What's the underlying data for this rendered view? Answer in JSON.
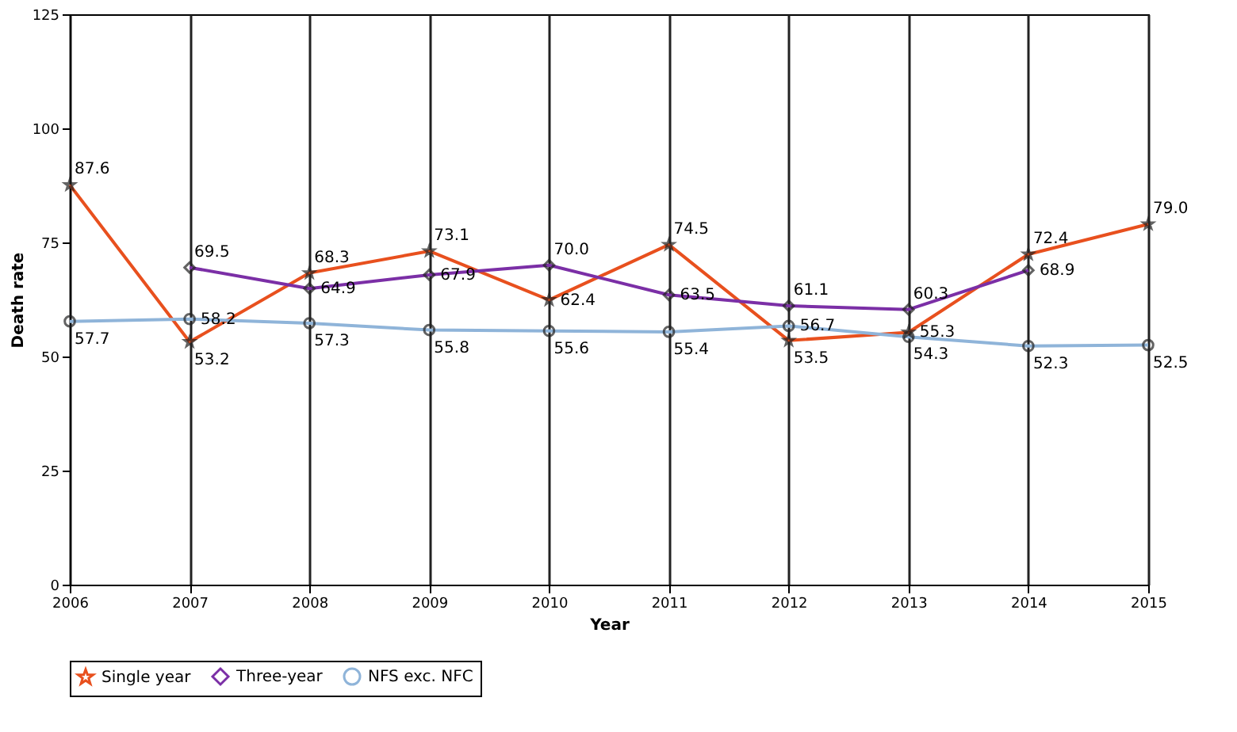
{
  "chart_data": {
    "type": "line",
    "xlabel": "Year",
    "ylabel": "Death rate",
    "categories": [
      "2006",
      "2007",
      "2008",
      "2009",
      "2010",
      "2011",
      "2012",
      "2013",
      "2014",
      "2015"
    ],
    "series": [
      {
        "name": "Single year",
        "color": "#e8501e",
        "marker": "star",
        "values": [
          87.6,
          53.2,
          68.3,
          73.1,
          62.4,
          74.5,
          53.5,
          55.3,
          72.4,
          79.0
        ],
        "value_labels": [
          "87.6",
          "53.2",
          "68.3",
          "73.1",
          "62.4",
          "74.5",
          "53.5",
          "55.3",
          "72.4",
          "79.0"
        ]
      },
      {
        "name": "Three-year",
        "color": "#7b2fa6",
        "marker": "diamond",
        "values": [
          null,
          69.5,
          64.9,
          67.9,
          70.0,
          63.5,
          61.1,
          60.3,
          68.9,
          null
        ],
        "value_labels": [
          null,
          "69.5",
          "64.9",
          "67.9",
          "70.0",
          "63.5",
          "61.1",
          "60.3",
          "68.9",
          null
        ]
      },
      {
        "name": "NFS exc. NFC",
        "color": "#8fb4d9",
        "marker": "circle",
        "values": [
          57.7,
          58.2,
          57.3,
          55.8,
          55.6,
          55.4,
          56.7,
          54.3,
          52.3,
          52.5
        ],
        "value_labels": [
          "57.7",
          "58.2",
          "57.3",
          "55.8",
          "55.6",
          "55.4",
          "56.7",
          "54.3",
          "52.3",
          "52.5"
        ]
      }
    ],
    "ylim": [
      0,
      125
    ],
    "yticks": [
      0,
      25,
      50,
      75,
      100,
      125
    ],
    "grid": "x",
    "legend": "bottom",
    "line_style": "solid"
  }
}
